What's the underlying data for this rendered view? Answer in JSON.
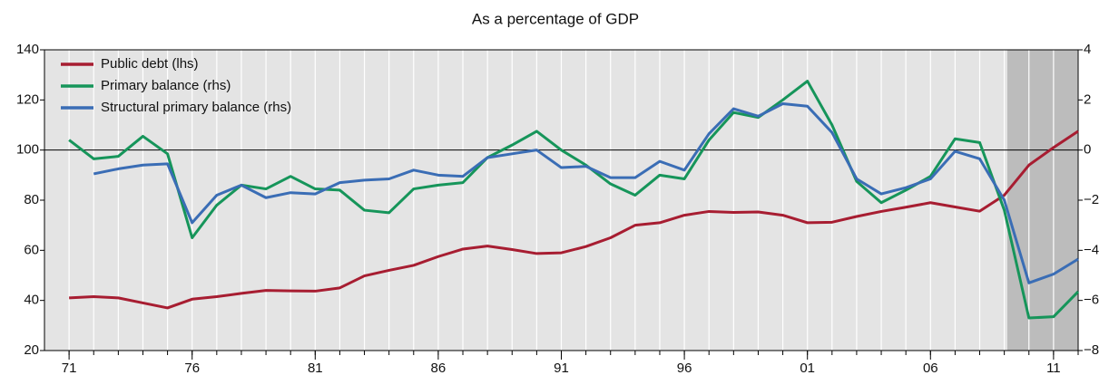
{
  "chart_data": {
    "type": "line",
    "title": "As a percentage of GDP",
    "x": [
      1971,
      1972,
      1973,
      1974,
      1975,
      1976,
      1977,
      1978,
      1979,
      1980,
      1981,
      1982,
      1983,
      1984,
      1985,
      1986,
      1987,
      1988,
      1989,
      1990,
      1991,
      1992,
      1993,
      1994,
      1995,
      1996,
      1997,
      1998,
      1999,
      2000,
      2001,
      2002,
      2003,
      2004,
      2005,
      2006,
      2007,
      2008,
      2009,
      2010,
      2011,
      2012
    ],
    "xlim": [
      1970,
      2012
    ],
    "xticks": [
      {
        "value": 1971,
        "label": "71"
      },
      {
        "value": 1976,
        "label": "76"
      },
      {
        "value": 1981,
        "label": "81"
      },
      {
        "value": 1986,
        "label": "86"
      },
      {
        "value": 1991,
        "label": "91"
      },
      {
        "value": 1996,
        "label": "96"
      },
      {
        "value": 2001,
        "label": "01"
      },
      {
        "value": 2006,
        "label": "06"
      },
      {
        "value": 2011,
        "label": "11"
      }
    ],
    "ylim": [
      20,
      140
    ],
    "yticks": [
      20,
      40,
      60,
      80,
      100,
      120,
      140
    ],
    "y2lim": [
      -8,
      4
    ],
    "y2ticks": [
      {
        "value": -8,
        "label": "−8"
      },
      {
        "value": -6,
        "label": "−6"
      },
      {
        "value": -4,
        "label": "−4"
      },
      {
        "value": -2,
        "label": "−2"
      },
      0,
      2,
      4
    ],
    "legend": "top-left",
    "series": [
      {
        "name": "Public debt (lhs)",
        "color": "#a71d31",
        "values": [
          41,
          41.5,
          41,
          39,
          37,
          40.5,
          41.5,
          42.8,
          44,
          43.8,
          43.7,
          45,
          49.8,
          52,
          54,
          57.5,
          60.5,
          61.7,
          60.3,
          58.7,
          59,
          61.5,
          65,
          70,
          71,
          74,
          75.5,
          75.1,
          75.3,
          74,
          71,
          71.2,
          73.5,
          75.5,
          77.2,
          79,
          77.3,
          75.6,
          82,
          94,
          101,
          107.5
        ]
      },
      {
        "name": "Primary balance (rhs)",
        "color": "#16955a",
        "axis": "y2",
        "values": [
          0.4,
          -0.35,
          -0.25,
          0.55,
          -0.15,
          -3.5,
          -2.2,
          -1.4,
          -1.55,
          -1.05,
          -1.55,
          -1.6,
          -2.4,
          -2.5,
          -1.55,
          -1.4,
          -1.3,
          -0.3,
          0.2,
          0.75,
          0,
          -0.6,
          -1.35,
          -1.8,
          -1,
          -1.15,
          0.4,
          1.5,
          1.3,
          2.0,
          2.75,
          1.0,
          -1.25,
          -2.1,
          -1.6,
          -1.05,
          0.45,
          0.3,
          -2.4,
          -6.7,
          -6.65,
          -5.65
        ]
      },
      {
        "name": "Structural primary balance (rhs)",
        "color": "#3a6db5",
        "axis": "y2",
        "values": [
          null,
          -0.95,
          -0.75,
          -0.6,
          -0.55,
          -2.9,
          -1.8,
          -1.4,
          -1.9,
          -1.7,
          -1.75,
          -1.3,
          -1.2,
          -1.15,
          -0.8,
          -1,
          -1.05,
          -0.3,
          -0.15,
          0,
          -0.7,
          -0.65,
          -1.1,
          -1.1,
          -0.45,
          -0.8,
          0.65,
          1.65,
          1.35,
          1.85,
          1.75,
          0.7,
          -1.15,
          -1.75,
          -1.5,
          -1.15,
          -0.05,
          -0.35,
          -2.0,
          -5.3,
          -4.95,
          -4.35
        ]
      }
    ]
  }
}
